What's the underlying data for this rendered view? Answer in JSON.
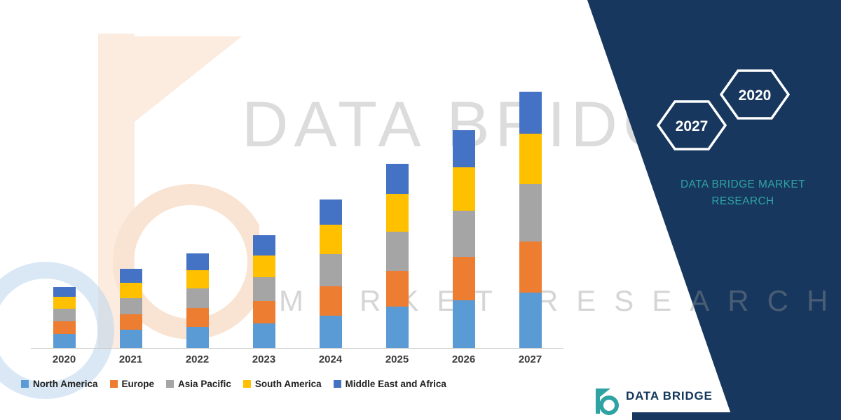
{
  "chart_data": {
    "type": "bar",
    "stacked": true,
    "title": "",
    "categories": [
      "2020",
      "2021",
      "2022",
      "2023",
      "2024",
      "2025",
      "2026",
      "2027"
    ],
    "series": [
      {
        "name": "North America",
        "color": "#5B9BD5",
        "values": [
          5.5,
          7.0,
          8.2,
          9.5,
          12.5,
          16.0,
          18.5,
          21.5
        ]
      },
      {
        "name": "Europe",
        "color": "#ED7D31",
        "values": [
          4.8,
          6.2,
          7.4,
          8.8,
          11.5,
          14.0,
          17.0,
          20.0
        ]
      },
      {
        "name": "Asia Pacific",
        "color": "#A5A5A5",
        "values": [
          4.9,
          6.3,
          7.6,
          9.2,
          12.5,
          15.5,
          18.0,
          22.5
        ]
      },
      {
        "name": "South America",
        "color": "#FFC000",
        "values": [
          4.7,
          6.0,
          7.2,
          8.7,
          11.5,
          14.5,
          17.0,
          19.5
        ]
      },
      {
        "name": "Middle East and Africa",
        "color": "#4472C4",
        "values": [
          4.0,
          5.5,
          6.6,
          7.8,
          10.0,
          12.0,
          14.5,
          16.5
        ]
      }
    ],
    "ylim": [
      0,
      100
    ],
    "grid": false,
    "legend_position": "bottom"
  },
  "panel": {
    "background": "#17375E",
    "accent_teal": "#2FA3A3",
    "hexagons": [
      {
        "label": "2027"
      },
      {
        "label": "2020"
      }
    ],
    "heading_line1": "DATA BRIDGE MARKET",
    "heading_line2": "RESEARCH"
  },
  "watermark": {
    "line1": "DATA BRIDGE",
    "line2": "MARKET RESEARCH"
  },
  "footer_logo": {
    "text": "DATA BRIDGE"
  }
}
